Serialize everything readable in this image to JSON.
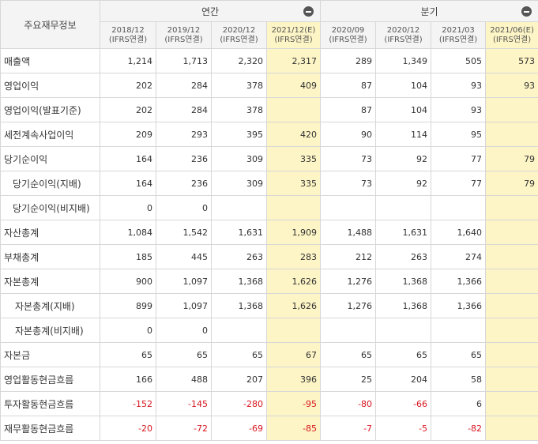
{
  "header": {
    "corner": "주요재무정보",
    "annual_label": "연간",
    "quarter_label": "분기",
    "columns": [
      {
        "date": "2018/12",
        "basis": "(IFRS연결)",
        "est": false
      },
      {
        "date": "2019/12",
        "basis": "(IFRS연결)",
        "est": false
      },
      {
        "date": "2020/12",
        "basis": "(IFRS연결)",
        "est": false
      },
      {
        "date": "2021/12(E)",
        "basis": "(IFRS연결)",
        "est": true
      },
      {
        "date": "2020/09",
        "basis": "(IFRS연결)",
        "est": false
      },
      {
        "date": "2020/12",
        "basis": "(IFRS연결)",
        "est": false
      },
      {
        "date": "2021/03",
        "basis": "(IFRS연결)",
        "est": false
      },
      {
        "date": "2021/06(E)",
        "basis": "(IFRS연결)",
        "est": true
      }
    ]
  },
  "rows": [
    {
      "label": "매출액",
      "indent": 0,
      "values": [
        "1,214",
        "1,713",
        "2,320",
        "2,317",
        "289",
        "1,349",
        "505",
        "573"
      ]
    },
    {
      "label": "영업이익",
      "indent": 0,
      "values": [
        "202",
        "284",
        "378",
        "409",
        "87",
        "104",
        "93",
        "93"
      ]
    },
    {
      "label": "영업이익(발표기준)",
      "indent": 0,
      "values": [
        "202",
        "284",
        "378",
        "",
        "87",
        "104",
        "93",
        ""
      ]
    },
    {
      "label": "세전계속사업이익",
      "indent": 0,
      "values": [
        "209",
        "293",
        "395",
        "420",
        "90",
        "114",
        "95",
        ""
      ]
    },
    {
      "label": "당기순이익",
      "indent": 0,
      "values": [
        "164",
        "236",
        "309",
        "335",
        "73",
        "92",
        "77",
        "79"
      ]
    },
    {
      "label": "당기순이익(지배)",
      "indent": 1,
      "values": [
        "164",
        "236",
        "309",
        "335",
        "73",
        "92",
        "77",
        "79"
      ]
    },
    {
      "label": "당기순이익(비지배)",
      "indent": 1,
      "values": [
        "0",
        "0",
        "",
        "",
        "",
        "",
        "",
        ""
      ]
    },
    {
      "label": "자산총계",
      "indent": 0,
      "values": [
        "1,084",
        "1,542",
        "1,631",
        "1,909",
        "1,488",
        "1,631",
        "1,640",
        ""
      ]
    },
    {
      "label": "부채총계",
      "indent": 0,
      "values": [
        "185",
        "445",
        "263",
        "283",
        "212",
        "263",
        "274",
        ""
      ]
    },
    {
      "label": "자본총계",
      "indent": 0,
      "values": [
        "900",
        "1,097",
        "1,368",
        "1,626",
        "1,276",
        "1,368",
        "1,366",
        ""
      ]
    },
    {
      "label": "자본총계(지배)",
      "indent": 2,
      "values": [
        "899",
        "1,097",
        "1,368",
        "1,626",
        "1,276",
        "1,368",
        "1,366",
        ""
      ]
    },
    {
      "label": "자본총계(비지배)",
      "indent": 2,
      "values": [
        "0",
        "0",
        "",
        "",
        "",
        "",
        "",
        ""
      ]
    },
    {
      "label": "자본금",
      "indent": 0,
      "values": [
        "65",
        "65",
        "65",
        "67",
        "65",
        "65",
        "65",
        ""
      ]
    },
    {
      "label": "영업활동현금흐름",
      "indent": 0,
      "values": [
        "166",
        "488",
        "207",
        "396",
        "25",
        "204",
        "58",
        ""
      ]
    },
    {
      "label": "투자활동현금흐름",
      "indent": 0,
      "values": [
        "-152",
        "-145",
        "-280",
        "-95",
        "-80",
        "-66",
        "6",
        ""
      ]
    },
    {
      "label": "재무활동현금흐름",
      "indent": 0,
      "values": [
        "-20",
        "-72",
        "-69",
        "-85",
        "-7",
        "-5",
        "-82",
        ""
      ]
    }
  ]
}
